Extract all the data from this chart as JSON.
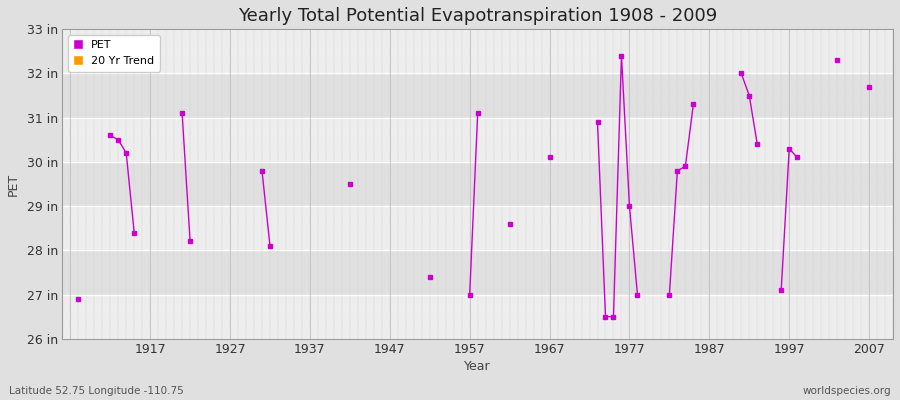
{
  "title": "Yearly Total Potential Evapotranspiration 1908 - 2009",
  "xlabel": "Year",
  "ylabel": "PET",
  "subtitle_left": "Latitude 52.75 Longitude -110.75",
  "subtitle_right": "worldspecies.org",
  "ylim": [
    26,
    33
  ],
  "xlim": [
    1906,
    2010
  ],
  "yticks": [
    26,
    27,
    28,
    29,
    30,
    31,
    32,
    33
  ],
  "ytick_labels": [
    "26 in",
    "27 in",
    "28 in",
    "29 in",
    "30 in",
    "31 in",
    "32 in",
    "33 in"
  ],
  "xticks": [
    1907,
    1917,
    1927,
    1937,
    1947,
    1957,
    1967,
    1977,
    1987,
    1997,
    2007
  ],
  "xtick_labels": [
    "",
    "1917",
    "1927",
    "1937",
    "1947",
    "1957",
    "1967",
    "1977",
    "1987",
    "1997",
    "2007"
  ],
  "background_color": "#e0e0e0",
  "plot_bg_color": "#e0e0e0",
  "line_color": "#cc00cc",
  "marker_color": "#cc00cc",
  "trend_color": "#ff9900",
  "grid_color_major": "#ffffff",
  "grid_color_minor": "#d0d0d0",
  "pet_data": [
    [
      1908,
      26.9
    ],
    [
      1912,
      30.6
    ],
    [
      1913,
      30.5
    ],
    [
      1914,
      30.2
    ],
    [
      1915,
      28.4
    ],
    [
      1921,
      31.1
    ],
    [
      1922,
      28.2
    ],
    [
      1931,
      29.8
    ],
    [
      1932,
      28.1
    ],
    [
      1942,
      29.5
    ],
    [
      1952,
      27.4
    ],
    [
      1957,
      27.0
    ],
    [
      1958,
      31.1
    ],
    [
      1962,
      28.6
    ],
    [
      1967,
      30.1
    ],
    [
      1973,
      30.9
    ],
    [
      1974,
      26.5
    ],
    [
      1975,
      26.5
    ],
    [
      1976,
      32.4
    ],
    [
      1977,
      29.0
    ],
    [
      1978,
      27.0
    ],
    [
      1982,
      27.0
    ],
    [
      1983,
      29.8
    ],
    [
      1984,
      29.9
    ],
    [
      1985,
      31.3
    ],
    [
      1991,
      32.0
    ],
    [
      1992,
      31.5
    ],
    [
      1993,
      30.4
    ],
    [
      1996,
      27.1
    ],
    [
      1997,
      30.3
    ],
    [
      1998,
      30.1
    ],
    [
      2003,
      32.3
    ],
    [
      2007,
      31.7
    ]
  ],
  "connect_threshold": 3
}
